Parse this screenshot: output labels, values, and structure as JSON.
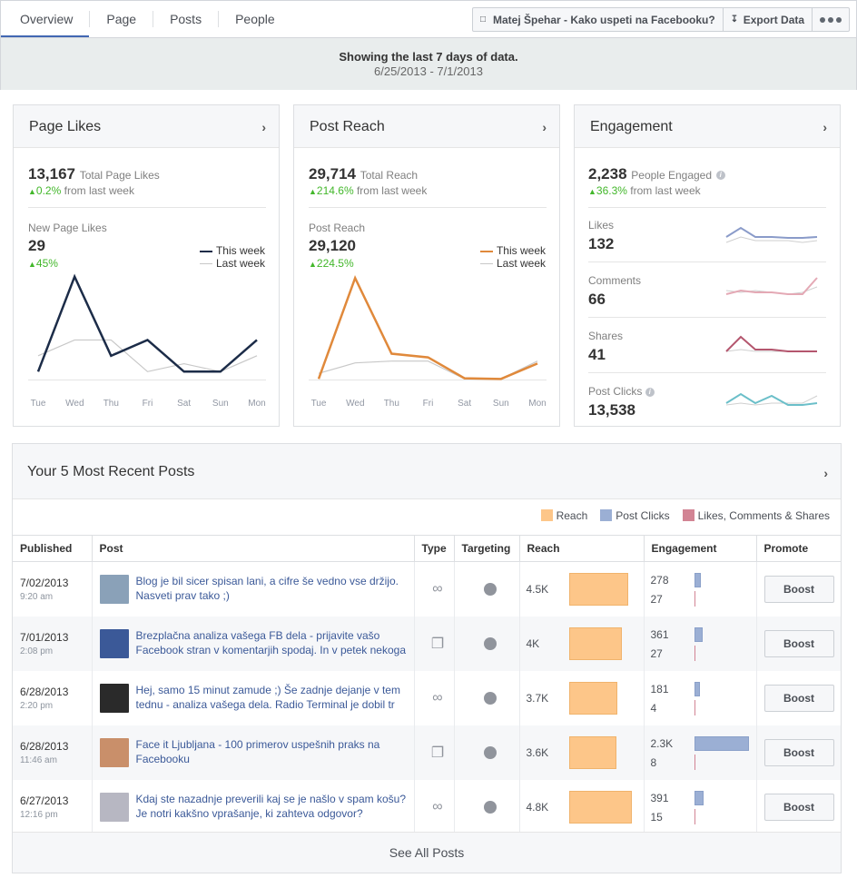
{
  "tabs": [
    "Overview",
    "Page",
    "Posts",
    "People"
  ],
  "page_button": "Matej Špehar - Kako uspeti na Facebooku?",
  "export_button": "Export Data",
  "banner": {
    "title": "Showing the last 7 days of data.",
    "range": "6/25/2013 - 7/1/2013"
  },
  "page_likes": {
    "title": "Page Likes",
    "total": "13,167",
    "total_label": "Total Page Likes",
    "change": "0.2%",
    "change_label": "from last week",
    "sub_label": "New Page Likes",
    "sub_value": "29",
    "sub_change": "45%",
    "legend_this": "This week",
    "legend_last": "Last week",
    "color": "#1c2c48"
  },
  "post_reach": {
    "title": "Post Reach",
    "total": "29,714",
    "total_label": "Total Reach",
    "change": "214.6%",
    "change_label": "from last week",
    "sub_label": "Post Reach",
    "sub_value": "29,120",
    "sub_change": "224.5%",
    "legend_this": "This week",
    "legend_last": "Last week",
    "color": "#e0893b"
  },
  "engagement": {
    "title": "Engagement",
    "total": "2,238",
    "total_label": "People Engaged",
    "change": "36.3%",
    "change_label": "from last week",
    "rows": [
      {
        "label": "Likes",
        "value": "132",
        "color": "#8a9bc9"
      },
      {
        "label": "Comments",
        "value": "66",
        "color": "#e4a9b5"
      },
      {
        "label": "Shares",
        "value": "41",
        "color": "#b4566e"
      },
      {
        "label": "Post Clicks",
        "value": "13,538",
        "color": "#6bbfc9"
      }
    ]
  },
  "weekdays": [
    "Tue",
    "Wed",
    "Thu",
    "Fri",
    "Sat",
    "Sun",
    "Mon"
  ],
  "chart_data": [
    {
      "type": "line",
      "title": "Page Likes",
      "x": [
        "Tue",
        "Wed",
        "Thu",
        "Fri",
        "Sat",
        "Sun",
        "Mon"
      ],
      "series": [
        {
          "name": "This week",
          "values": [
            1,
            13,
            3,
            5,
            1,
            1,
            5
          ]
        },
        {
          "name": "Last week",
          "values": [
            3,
            5,
            5,
            1,
            2,
            1,
            3
          ]
        }
      ],
      "ylim": [
        0,
        14
      ]
    },
    {
      "type": "line",
      "title": "Post Reach",
      "x": [
        "Tue",
        "Wed",
        "Thu",
        "Fri",
        "Sat",
        "Sun",
        "Mon"
      ],
      "series": [
        {
          "name": "This week",
          "values": [
            100,
            16500,
            4200,
            3600,
            200,
            100,
            2600
          ]
        },
        {
          "name": "Last week",
          "values": [
            1000,
            2700,
            3000,
            3000,
            100,
            100,
            3000
          ]
        }
      ],
      "ylim": [
        0,
        18000
      ]
    }
  ],
  "posts": {
    "title": "Your 5 Most Recent Posts",
    "legend": [
      {
        "label": "Reach",
        "color": "#fdc689"
      },
      {
        "label": "Post Clicks",
        "color": "#9bafd4"
      },
      {
        "label": "Likes, Comments & Shares",
        "color": "#d28494"
      }
    ],
    "columns": [
      "Published",
      "Post",
      "Type",
      "Targeting",
      "Reach",
      "Engagement",
      "Promote"
    ],
    "rows": [
      {
        "date": "7/02/2013",
        "time": "9:20 am",
        "text": "Blog je bil sicer spisan lani, a cifre še vedno vse držijo. Nasveti prav tako ;)",
        "type": "link",
        "reach": "4.5K",
        "reach_value": 4500,
        "clicks": "278",
        "clicks_value": 278,
        "lcs": "27",
        "boost": "Boost",
        "thumb": "#8aa1b8"
      },
      {
        "date": "7/01/2013",
        "time": "2:08 pm",
        "text": "Brezplačna analiza vašega FB dela - prijavite vašo Facebook stran v komentarjih spodaj. In v petek nekoga o",
        "type": "photo",
        "reach": "4K",
        "reach_value": 4000,
        "clicks": "361",
        "clicks_value": 361,
        "lcs": "27",
        "boost": "Boost",
        "thumb": "#3b5998"
      },
      {
        "date": "6/28/2013",
        "time": "2:20 pm",
        "text": "Hej, samo 15 minut zamude ;) Še zadnje dejanje v tem tednu - analiza vašega dela. Radio Terminal je dobil tr",
        "type": "link",
        "reach": "3.7K",
        "reach_value": 3700,
        "clicks": "181",
        "clicks_value": 181,
        "lcs": "4",
        "boost": "Boost",
        "thumb": "#2a2a2a"
      },
      {
        "date": "6/28/2013",
        "time": "11:46 am",
        "text": "Face it Ljubljana - 100 primerov uspešnih praks na Facebooku",
        "type": "photo",
        "reach": "3.6K",
        "reach_value": 3600,
        "clicks": "2.3K",
        "clicks_value": 2300,
        "lcs": "8",
        "boost": "Boost",
        "thumb": "#c98f6a"
      },
      {
        "date": "6/27/2013",
        "time": "12:16 pm",
        "text": "Kdaj ste nazadnje preverili kaj se je našlo v spam košu? Je notri kakšno vprašanje, ki zahteva odgovor?",
        "type": "link",
        "reach": "4.8K",
        "reach_value": 4800,
        "clicks": "391",
        "clicks_value": 391,
        "lcs": "15",
        "boost": "Boost",
        "thumb": "#b7b7c2"
      }
    ],
    "see_all": "See All Posts"
  }
}
